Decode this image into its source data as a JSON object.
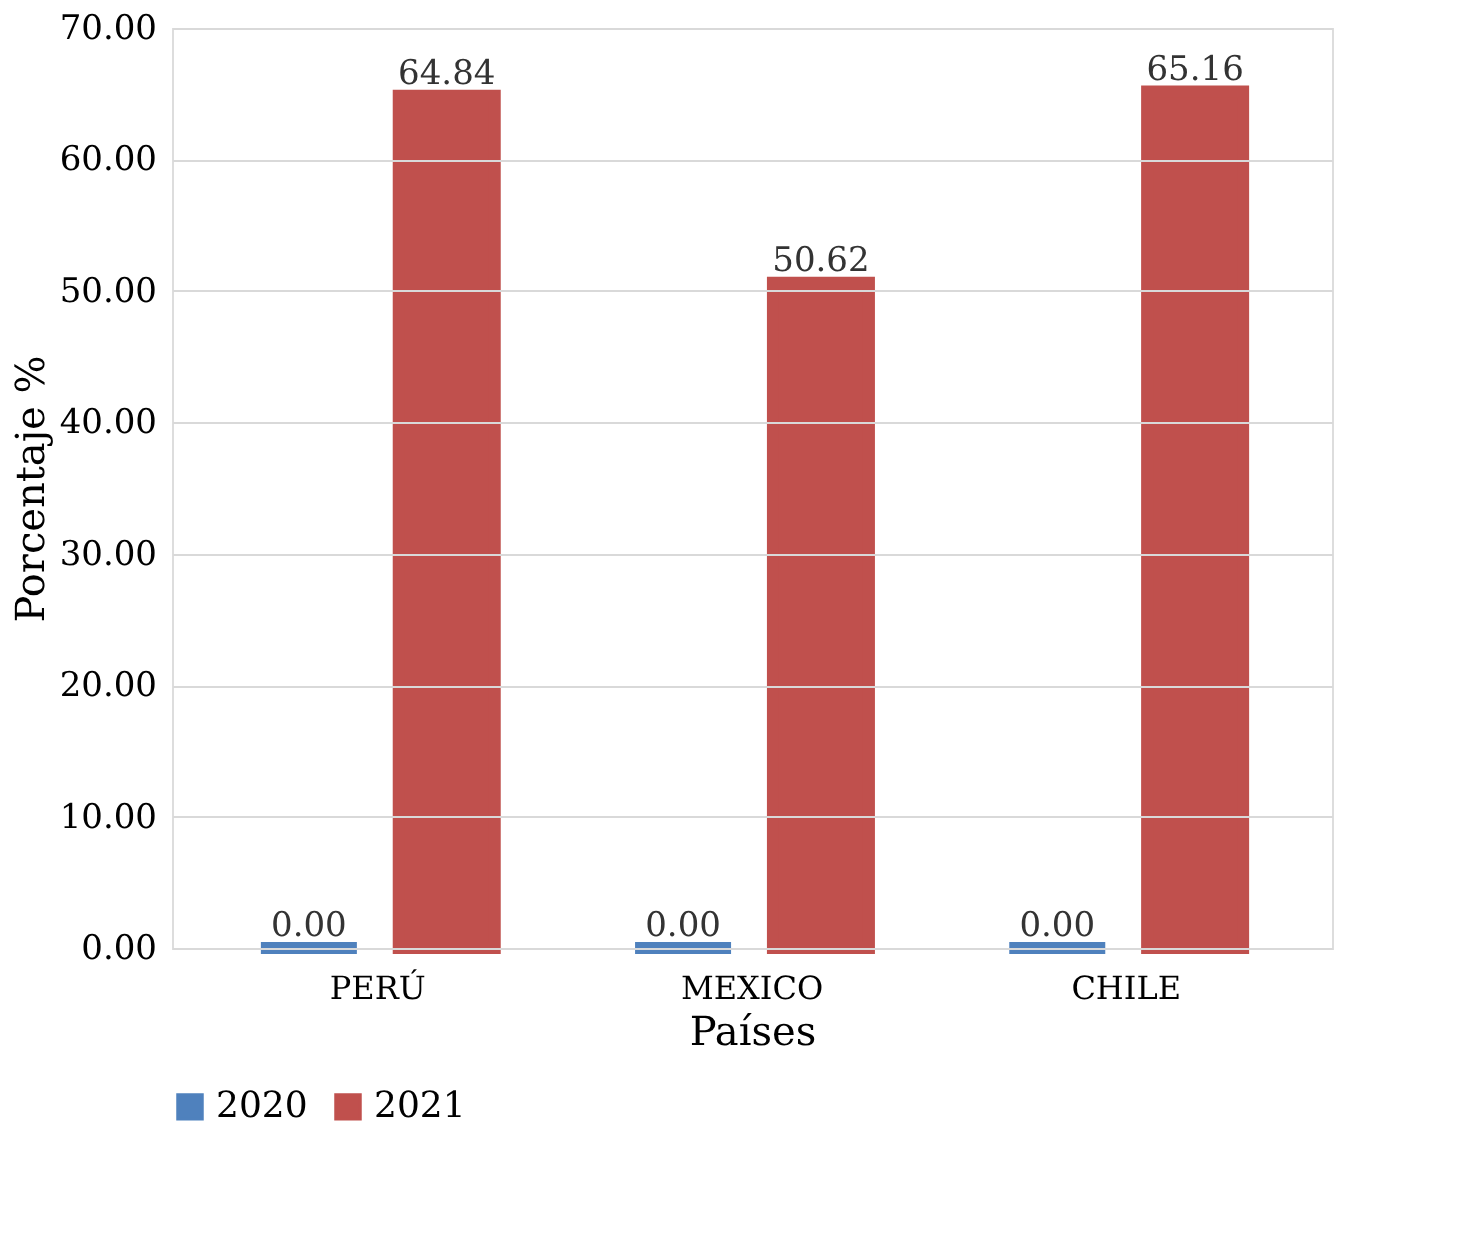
{
  "chart_data": {
    "type": "bar",
    "xlabel": "Países",
    "ylabel": "Porcentaje %",
    "categories": [
      "PERÚ",
      "MEXICO",
      "CHILE"
    ],
    "series": [
      {
        "name": "2020",
        "color": "#4f81bd",
        "values": [
          0,
          0,
          0
        ],
        "value_labels": [
          "0.00",
          "0.00",
          "0.00"
        ]
      },
      {
        "name": "2021",
        "color": "#c0504d",
        "values": [
          64.84,
          50.62,
          65.16
        ],
        "value_labels": [
          "64.84",
          "50.62",
          "65.16"
        ]
      }
    ],
    "ylim": [
      0,
      70
    ],
    "yticks": [
      {
        "value": 0,
        "label": "0.00"
      },
      {
        "value": 10,
        "label": "10.00"
      },
      {
        "value": 20,
        "label": "20.00"
      },
      {
        "value": 30,
        "label": "30.00"
      },
      {
        "value": 40,
        "label": "40.00"
      },
      {
        "value": 50,
        "label": "50.00"
      },
      {
        "value": 60,
        "label": "60.00"
      },
      {
        "value": 70,
        "label": "70.00"
      }
    ],
    "grid": "y",
    "legend": "bottom"
  }
}
